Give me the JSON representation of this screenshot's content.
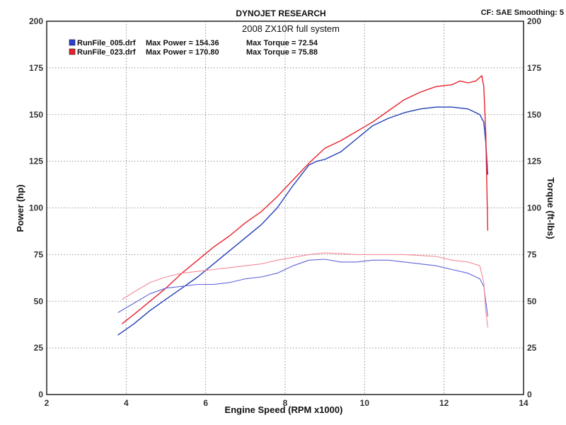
{
  "header": {
    "brand": "DYNOJET RESEARCH",
    "settings": "CF: SAE  Smoothing: 5"
  },
  "chart_data": {
    "type": "line",
    "title": "2008 ZX10R full system",
    "xlabel": "Engine Speed (RPM x1000)",
    "ylabel_left": "Power (hp)",
    "ylabel_right": "Torque (ft-lbs)",
    "xlim": [
      2,
      14
    ],
    "ylim": [
      0,
      200
    ],
    "x_ticks": [
      2,
      4,
      6,
      8,
      10,
      12,
      14
    ],
    "y_ticks": [
      0,
      25,
      50,
      75,
      100,
      125,
      150,
      175,
      200
    ],
    "grid": true,
    "legend_position": "top-left",
    "legend": [
      {
        "file": "RunFile_005.drf",
        "max_power_label": "Max Power = 154.36",
        "max_torque_label": "Max Torque = 72.54",
        "color": "#2a3fd6"
      },
      {
        "file": "RunFile_023.drf",
        "max_power_label": "Max Power = 170.80",
        "max_torque_label": "Max Torque = 75.88",
        "color": "#e8222b"
      }
    ],
    "series": [
      {
        "name": "RunFile_005.drf",
        "measure": "power",
        "color": "#1f3fb8",
        "x": [
          3.8,
          4.2,
          4.6,
          5.0,
          5.4,
          5.8,
          6.2,
          6.6,
          7.0,
          7.4,
          7.8,
          8.2,
          8.6,
          8.8,
          9.0,
          9.4,
          9.8,
          10.2,
          10.6,
          11.0,
          11.4,
          11.8,
          12.2,
          12.6,
          12.9,
          13.0,
          13.05,
          13.1
        ],
        "values": [
          32,
          38,
          45,
          51,
          57,
          63,
          70,
          77,
          84,
          91,
          100,
          112,
          123,
          125,
          126,
          130,
          137,
          144,
          148,
          151,
          153,
          154,
          154,
          153,
          150,
          146,
          135,
          118
        ]
      },
      {
        "name": "RunFile_023.drf",
        "measure": "power",
        "color": "#e8222b",
        "x": [
          3.9,
          4.2,
          4.6,
          5.0,
          5.4,
          5.8,
          6.2,
          6.6,
          7.0,
          7.4,
          7.8,
          8.2,
          8.6,
          9.0,
          9.4,
          9.8,
          10.2,
          10.6,
          11.0,
          11.4,
          11.8,
          12.2,
          12.4,
          12.6,
          12.8,
          12.95,
          13.0,
          13.05,
          13.1
        ],
        "values": [
          38,
          43,
          50,
          57,
          65,
          72,
          79,
          85,
          92,
          98,
          106,
          115,
          124,
          132,
          136,
          141,
          146,
          152,
          158,
          162,
          165,
          166,
          168,
          167,
          168,
          170.8,
          165,
          140,
          88
        ]
      },
      {
        "name": "RunFile_005.drf",
        "measure": "torque",
        "color": "#5f63d9",
        "x": [
          3.8,
          4.2,
          4.6,
          5.0,
          5.4,
          5.8,
          6.2,
          6.6,
          7.0,
          7.4,
          7.8,
          8.2,
          8.6,
          9.0,
          9.4,
          9.8,
          10.2,
          10.6,
          11.0,
          11.4,
          11.8,
          12.2,
          12.6,
          12.9,
          13.0,
          13.05,
          13.1
        ],
        "values": [
          44,
          49,
          54,
          57,
          58,
          59,
          59,
          60,
          62,
          63,
          65,
          69,
          72,
          72.5,
          71,
          71,
          72,
          72,
          71,
          70,
          69,
          67,
          65,
          62,
          58,
          50,
          42
        ]
      },
      {
        "name": "RunFile_023.drf",
        "measure": "torque",
        "color": "#f28a96",
        "x": [
          3.9,
          4.2,
          4.6,
          5.0,
          5.4,
          5.8,
          6.2,
          6.6,
          7.0,
          7.4,
          7.8,
          8.2,
          8.6,
          9.0,
          9.4,
          9.8,
          10.2,
          10.6,
          11.0,
          11.4,
          11.8,
          12.2,
          12.6,
          12.9,
          13.0,
          13.05,
          13.1
        ],
        "values": [
          51,
          55,
          60,
          63,
          65,
          66,
          67,
          68,
          69,
          70,
          72,
          73.5,
          75,
          75.88,
          75.5,
          75,
          75,
          75,
          75,
          74.5,
          74,
          72,
          71,
          69,
          60,
          45,
          36
        ]
      }
    ]
  }
}
